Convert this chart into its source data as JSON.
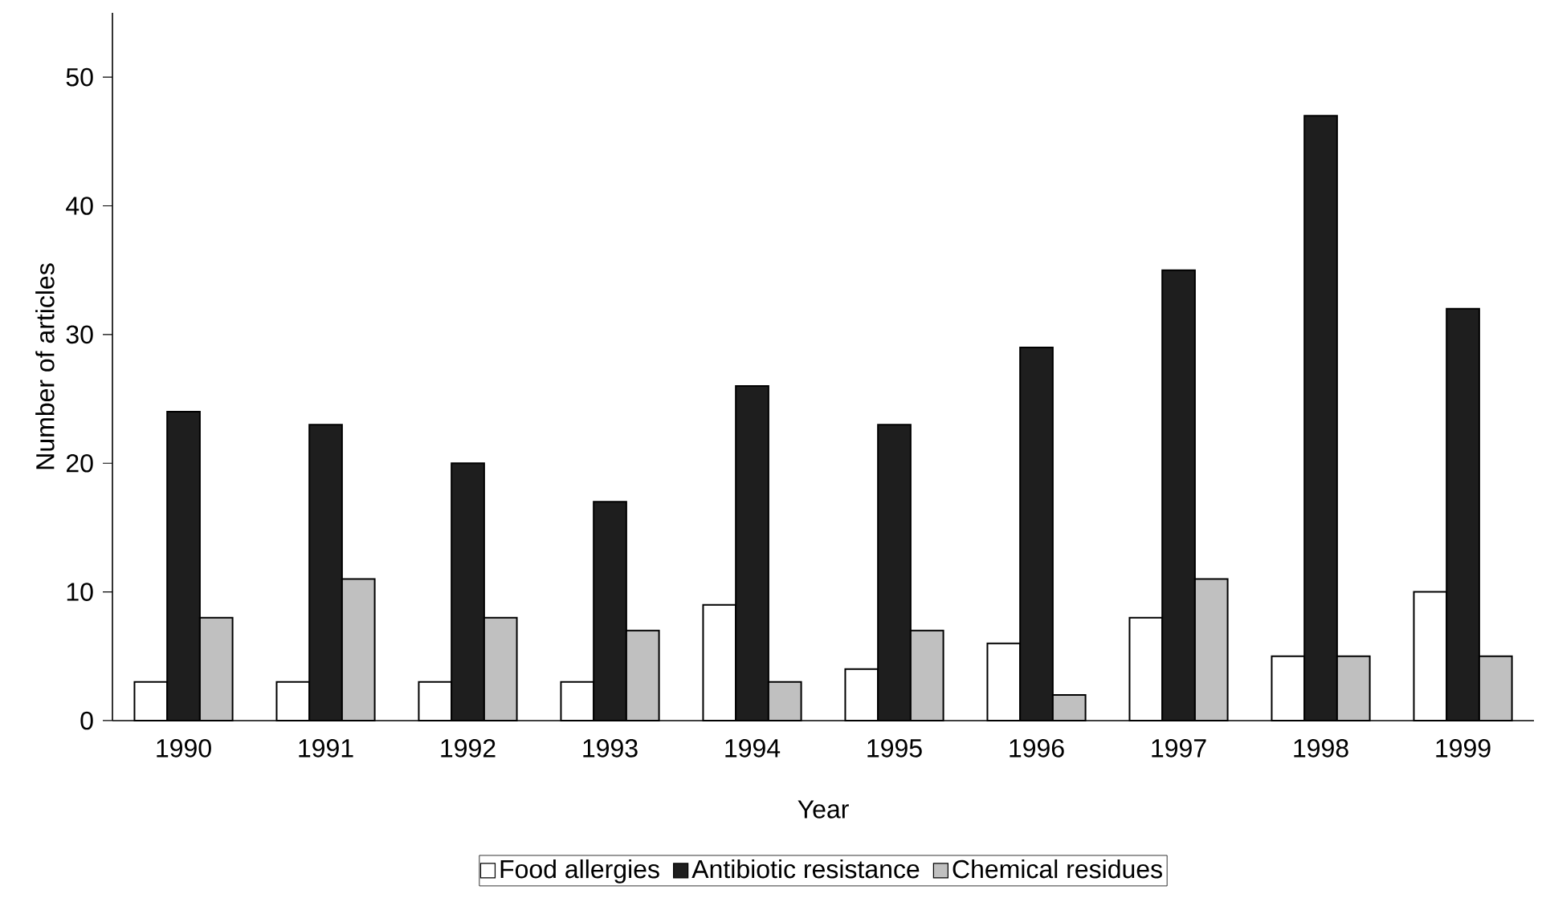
{
  "chart_data": {
    "type": "bar",
    "xlabel": "Year",
    "ylabel": "Number of articles",
    "categories": [
      "1990",
      "1991",
      "1992",
      "1993",
      "1994",
      "1995",
      "1996",
      "1997",
      "1998",
      "1999"
    ],
    "series": [
      {
        "name": "Food allergies",
        "color": "#ffffff",
        "values": [
          3,
          3,
          3,
          3,
          9,
          4,
          6,
          8,
          5,
          10
        ]
      },
      {
        "name": "Antibiotic resistance",
        "color": "#1e1e1e",
        "values": [
          24,
          23,
          20,
          17,
          26,
          23,
          29,
          35,
          47,
          32
        ]
      },
      {
        "name": "Chemical residues",
        "color": "#c0c0c0",
        "values": [
          8,
          11,
          8,
          7,
          3,
          7,
          2,
          11,
          5,
          5
        ]
      }
    ],
    "ylim": [
      0,
      55
    ],
    "yticks": [
      0,
      10,
      20,
      30,
      40,
      50
    ],
    "legend": "bottom"
  }
}
